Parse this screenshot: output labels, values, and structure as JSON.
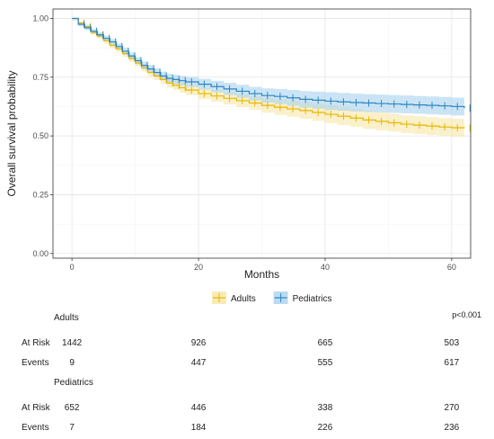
{
  "chart_data": {
    "type": "line",
    "title": "",
    "xlabel": "Months",
    "ylabel": "Overall survival probability",
    "xlim": [
      -3,
      63
    ],
    "ylim": [
      -0.02,
      1.04
    ],
    "x_ticks": [
      0,
      20,
      40,
      60
    ],
    "x_tick_labels": [
      "0",
      "20",
      "40",
      "60"
    ],
    "y_ticks": [
      0,
      0.25,
      0.5,
      0.75,
      1
    ],
    "y_tick_labels": [
      "0.00",
      "0.25",
      "0.50",
      "0.75",
      "1.00"
    ],
    "grid": true,
    "legend_position": "bottom",
    "series": [
      {
        "name": "Adults",
        "color": "#E7B800",
        "fill": "#F7E6A6",
        "points": [
          [
            0,
            1.0
          ],
          [
            1,
            0.98
          ],
          [
            2,
            0.965
          ],
          [
            3,
            0.94
          ],
          [
            4,
            0.925
          ],
          [
            5,
            0.905
          ],
          [
            6,
            0.885
          ],
          [
            7,
            0.87
          ],
          [
            8,
            0.85
          ],
          [
            9,
            0.83
          ],
          [
            10,
            0.81
          ],
          [
            11,
            0.79
          ],
          [
            12,
            0.77
          ],
          [
            13,
            0.755
          ],
          [
            14,
            0.74
          ],
          [
            15,
            0.725
          ],
          [
            16,
            0.715
          ],
          [
            17,
            0.705
          ],
          [
            18,
            0.695
          ],
          [
            20,
            0.68
          ],
          [
            22,
            0.67
          ],
          [
            24,
            0.66
          ],
          [
            26,
            0.65
          ],
          [
            28,
            0.64
          ],
          [
            30,
            0.63
          ],
          [
            32,
            0.622
          ],
          [
            34,
            0.615
          ],
          [
            36,
            0.608
          ],
          [
            38,
            0.6
          ],
          [
            40,
            0.592
          ],
          [
            42,
            0.584
          ],
          [
            44,
            0.576
          ],
          [
            46,
            0.568
          ],
          [
            48,
            0.562
          ],
          [
            50,
            0.556
          ],
          [
            52,
            0.55
          ],
          [
            54,
            0.546
          ],
          [
            56,
            0.542
          ],
          [
            58,
            0.538
          ],
          [
            60,
            0.535
          ],
          [
            62,
            0.533
          ]
        ]
      },
      {
        "name": "Pediatrics",
        "color": "#2E86C1",
        "fill": "#A9D2EF",
        "points": [
          [
            0,
            1.0
          ],
          [
            1,
            0.975
          ],
          [
            2,
            0.96
          ],
          [
            3,
            0.945
          ],
          [
            4,
            0.93
          ],
          [
            5,
            0.915
          ],
          [
            6,
            0.9
          ],
          [
            7,
            0.88
          ],
          [
            8,
            0.86
          ],
          [
            9,
            0.84
          ],
          [
            10,
            0.82
          ],
          [
            11,
            0.8
          ],
          [
            12,
            0.785
          ],
          [
            13,
            0.77
          ],
          [
            14,
            0.755
          ],
          [
            15,
            0.745
          ],
          [
            16,
            0.74
          ],
          [
            17,
            0.735
          ],
          [
            18,
            0.73
          ],
          [
            20,
            0.72
          ],
          [
            22,
            0.71
          ],
          [
            24,
            0.7
          ],
          [
            26,
            0.69
          ],
          [
            28,
            0.68
          ],
          [
            30,
            0.672
          ],
          [
            32,
            0.668
          ],
          [
            34,
            0.662
          ],
          [
            36,
            0.656
          ],
          [
            38,
            0.652
          ],
          [
            40,
            0.648
          ],
          [
            42,
            0.645
          ],
          [
            44,
            0.642
          ],
          [
            46,
            0.64
          ],
          [
            48,
            0.638
          ],
          [
            50,
            0.636
          ],
          [
            52,
            0.634
          ],
          [
            54,
            0.632
          ],
          [
            56,
            0.63
          ],
          [
            58,
            0.628
          ],
          [
            60,
            0.625
          ],
          [
            62,
            0.618
          ]
        ]
      }
    ]
  },
  "risk_table": {
    "p_value": "p<0.001",
    "time_points": [
      0,
      20,
      40,
      60
    ],
    "groups": [
      {
        "name": "Adults",
        "rows": [
          {
            "label": "At Risk",
            "values": [
              "1442",
              "926",
              "665",
              "503"
            ]
          },
          {
            "label": "Events",
            "values": [
              "9",
              "447",
              "555",
              "617"
            ]
          }
        ]
      },
      {
        "name": "Pediatrics",
        "rows": [
          {
            "label": "At Risk",
            "values": [
              "652",
              "446",
              "338",
              "270"
            ]
          },
          {
            "label": "Events",
            "values": [
              "7",
              "184",
              "226",
              "236"
            ]
          }
        ]
      }
    ]
  }
}
